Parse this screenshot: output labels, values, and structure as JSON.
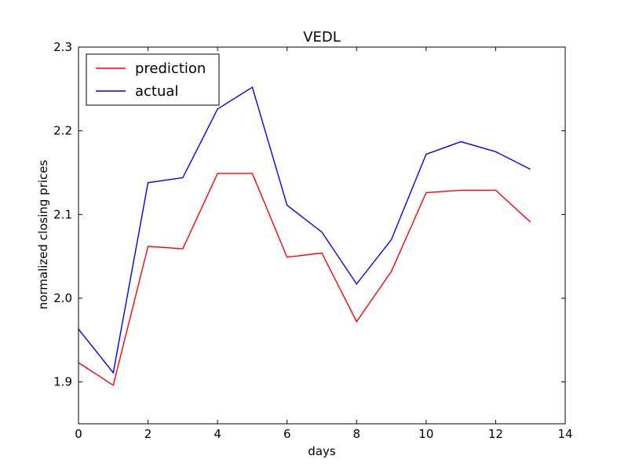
{
  "chart_data": {
    "type": "line",
    "title": "VEDL",
    "xlabel": "days",
    "ylabel": "normalized closing prices",
    "xlim": [
      0,
      14
    ],
    "ylim": [
      1.85,
      2.3
    ],
    "x_ticks": [
      0,
      2,
      4,
      6,
      8,
      10,
      12,
      14
    ],
    "x_tick_labels": [
      "0",
      "2",
      "4",
      "6",
      "8",
      "10",
      "12",
      "14"
    ],
    "y_ticks": [
      1.9,
      2.0,
      2.1,
      2.2,
      2.3
    ],
    "y_tick_labels": [
      "1.9",
      "2.0",
      "2.1",
      "2.2",
      "2.3"
    ],
    "grid": false,
    "legend_placement": "top-left",
    "x": [
      0,
      1,
      2,
      3,
      4,
      5,
      6,
      7,
      8,
      9,
      10,
      11,
      12,
      13
    ],
    "series": [
      {
        "name": "prediction",
        "color": "#ff0000",
        "values": [
          1.923,
          1.896,
          2.062,
          2.059,
          2.149,
          2.149,
          2.049,
          2.054,
          1.972,
          2.032,
          2.126,
          2.129,
          2.129,
          2.091
        ]
      },
      {
        "name": "actual",
        "color": "#0000ff",
        "values": [
          1.963,
          1.911,
          2.138,
          2.144,
          2.226,
          2.252,
          2.111,
          2.079,
          2.017,
          2.07,
          2.172,
          2.187,
          2.175,
          2.154
        ]
      }
    ]
  }
}
